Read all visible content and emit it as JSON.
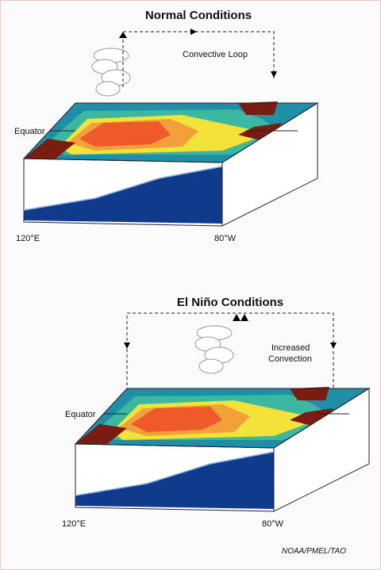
{
  "panels": [
    {
      "title": "Normal Conditions",
      "loop_label": [
        "Convective Loop"
      ],
      "equator_label": "Equator",
      "lon_west": "120°E",
      "lon_east": "80°W"
    },
    {
      "title": "El Niño Conditions",
      "loop_label": [
        "Increased",
        "Convection"
      ],
      "equator_label": "Equator",
      "lon_west": "120°E",
      "lon_east": "80°W"
    }
  ],
  "credit": "NOAA/PMEL/TAO"
}
